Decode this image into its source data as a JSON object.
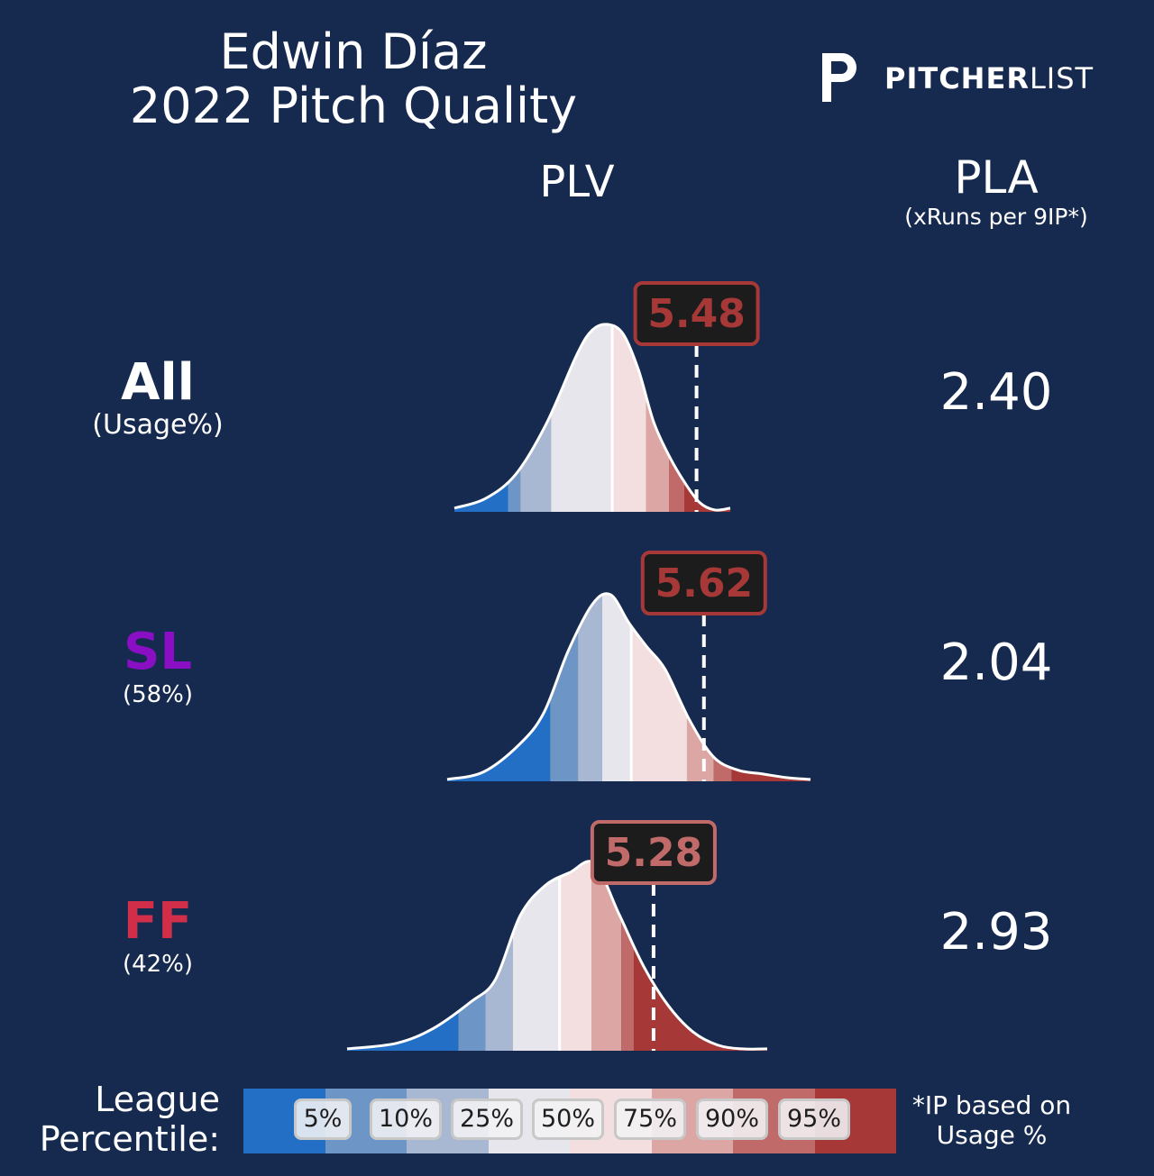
{
  "title": {
    "player": "Edwin Díaz",
    "subtitle": "2022 Pitch Quality"
  },
  "logo": {
    "bold": "PITCHER",
    "light": "LIST"
  },
  "columns": {
    "plv": "PLV",
    "pla": "PLA",
    "pla_sub": "(xRuns per 9IP*)"
  },
  "rows": [
    {
      "name": "All",
      "usage": "(Usage%)",
      "color": "#ffffff",
      "pla": "2.40",
      "plv": "5.48"
    },
    {
      "name": "SL",
      "usage": "(58%)",
      "color": "#8a0fc4",
      "pla": "2.04",
      "plv": "5.62"
    },
    {
      "name": "FF",
      "usage": "(42%)",
      "color": "#d22d49",
      "pla": "2.93",
      "plv": "5.28"
    }
  ],
  "legend": {
    "label_line1": "League",
    "label_line2": "Percentile:",
    "percentiles": [
      "5%",
      "10%",
      "25%",
      "50%",
      "75%",
      "90%",
      "95%"
    ],
    "colors": [
      "#246fc6",
      "#6d95c6",
      "#a8b8d2",
      "#e6e6ec",
      "#f3dfdf",
      "#dba6a3",
      "#c06a69",
      "#a63838"
    ]
  },
  "footnote": {
    "line1": "*IP based on",
    "line2": "Usage %"
  },
  "chart_data": [
    {
      "type": "area",
      "title": "All",
      "x": [
        3.9,
        4.1,
        4.3,
        4.5,
        4.7,
        4.8,
        4.9,
        5.0,
        5.1,
        5.2,
        5.3,
        5.4,
        5.5,
        5.6,
        5.7
      ],
      "y": [
        0.02,
        0.07,
        0.2,
        0.47,
        0.84,
        0.97,
        1.0,
        0.95,
        0.76,
        0.48,
        0.3,
        0.16,
        0.05,
        0.01,
        0.02
      ],
      "marker": 5.48,
      "percentile_cuts": [
        4.25,
        4.33,
        4.53,
        4.93,
        5.15,
        5.3,
        5.4
      ]
    },
    {
      "type": "area",
      "title": "SL",
      "x": [
        3.5,
        3.8,
        4.1,
        4.3,
        4.5,
        4.7,
        4.85,
        5.0,
        5.15,
        5.3,
        5.5,
        5.7,
        5.9,
        6.1,
        6.3,
        6.5
      ],
      "y": [
        0.01,
        0.05,
        0.2,
        0.37,
        0.7,
        0.95,
        1.0,
        0.85,
        0.72,
        0.6,
        0.33,
        0.13,
        0.06,
        0.04,
        0.02,
        0.01
      ],
      "marker": 5.62,
      "percentile_cuts": [
        4.35,
        4.58,
        4.78,
        5.02,
        5.48,
        5.7,
        5.85
      ]
    },
    {
      "type": "area",
      "title": "FF",
      "x": [
        2.8,
        3.2,
        3.5,
        3.8,
        4.0,
        4.2,
        4.4,
        4.6,
        4.8,
        5.0,
        5.2,
        5.4,
        5.6,
        5.8,
        6.0,
        6.2
      ],
      "y": [
        0.01,
        0.04,
        0.12,
        0.26,
        0.38,
        0.72,
        0.88,
        0.95,
        1.0,
        0.73,
        0.45,
        0.24,
        0.1,
        0.03,
        0.01,
        0.01
      ],
      "marker": 5.28,
      "percentile_cuts": [
        3.7,
        3.92,
        4.14,
        4.52,
        4.78,
        5.02,
        5.12
      ]
    }
  ]
}
